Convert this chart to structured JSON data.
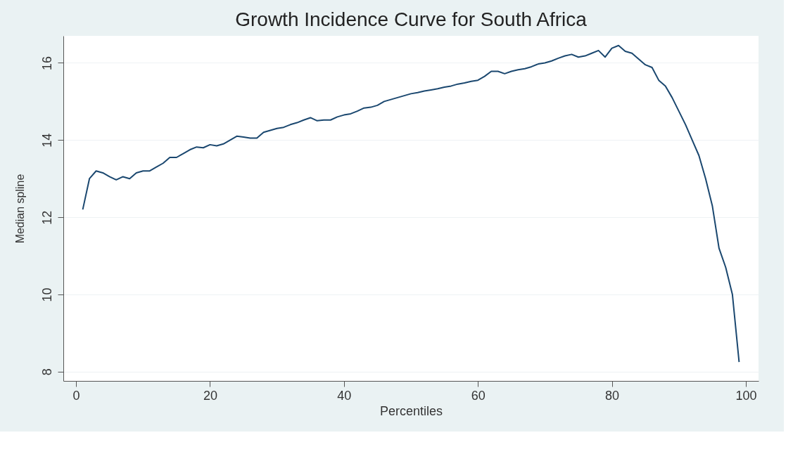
{
  "chart_data": {
    "type": "line",
    "title": "Growth Incidence Curve for South Africa",
    "xlabel": "Percentiles",
    "ylabel": "Median spline",
    "x": [
      1,
      2,
      3,
      4,
      5,
      6,
      7,
      8,
      9,
      10,
      11,
      12,
      13,
      14,
      15,
      16,
      17,
      18,
      19,
      20,
      21,
      22,
      23,
      24,
      25,
      26,
      27,
      28,
      29,
      30,
      31,
      32,
      33,
      34,
      35,
      36,
      37,
      38,
      39,
      40,
      41,
      42,
      43,
      44,
      45,
      46,
      47,
      48,
      49,
      50,
      51,
      52,
      53,
      54,
      55,
      56,
      57,
      58,
      59,
      60,
      61,
      62,
      63,
      64,
      65,
      66,
      67,
      68,
      69,
      70,
      71,
      72,
      73,
      74,
      75,
      76,
      77,
      78,
      79,
      80,
      81,
      82,
      83,
      84,
      85,
      86,
      87,
      88,
      89,
      90,
      91,
      92,
      93,
      94,
      95,
      96,
      97,
      98,
      99
    ],
    "series": [
      {
        "color": "#1a476f",
        "values": [
          12.2,
          13.0,
          13.2,
          13.15,
          13.05,
          12.97,
          13.05,
          13.0,
          13.15,
          13.2,
          13.2,
          13.3,
          13.4,
          13.55,
          13.55,
          13.65,
          13.75,
          13.82,
          13.8,
          13.88,
          13.85,
          13.9,
          14.0,
          14.1,
          14.08,
          14.05,
          14.05,
          14.2,
          14.25,
          14.3,
          14.33,
          14.4,
          14.45,
          14.52,
          14.58,
          14.5,
          14.52,
          14.52,
          14.6,
          14.65,
          14.68,
          14.75,
          14.83,
          14.85,
          14.9,
          15.0,
          15.05,
          15.1,
          15.15,
          15.2,
          15.23,
          15.27,
          15.3,
          15.33,
          15.37,
          15.4,
          15.45,
          15.48,
          15.52,
          15.55,
          15.65,
          15.78,
          15.78,
          15.72,
          15.78,
          15.82,
          15.85,
          15.9,
          15.97,
          16.0,
          16.05,
          16.12,
          16.18,
          16.22,
          16.15,
          16.18,
          16.25,
          16.32,
          16.15,
          16.38,
          16.45,
          16.3,
          16.25,
          16.1,
          15.95,
          15.88,
          15.55,
          15.4,
          15.1,
          14.75,
          14.4,
          14.0,
          13.6,
          13.0,
          12.3,
          11.2,
          10.7,
          10.0,
          8.25
        ]
      }
    ],
    "xlim": [
      -1.9,
      101.9
    ],
    "xticks": [
      0,
      20,
      40,
      60,
      80,
      100
    ],
    "ylim": [
      7.76,
      16.7
    ],
    "yticks": [
      8,
      10,
      12,
      14,
      16
    ],
    "grid": "y",
    "marker": "none",
    "line_style": "solid"
  }
}
